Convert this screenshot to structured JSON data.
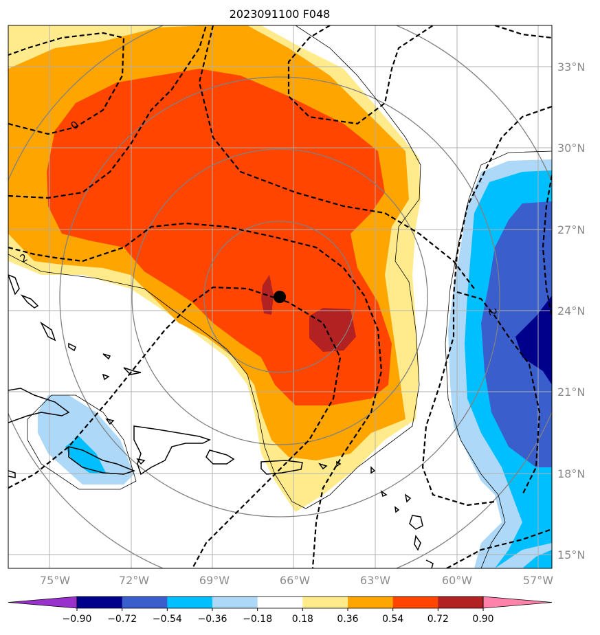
{
  "title": "2023091100 F048",
  "map": {
    "lon_labels": [
      "75°W",
      "72°W",
      "69°W",
      "66°W",
      "63°W",
      "60°W",
      "57°W"
    ],
    "lat_labels": [
      "33°N",
      "30°N",
      "27°N",
      "24°N",
      "21°N",
      "18°N",
      "15°N"
    ],
    "lon_values": [
      -75,
      -72,
      -69,
      -66,
      -63,
      -60,
      -57
    ],
    "lat_values": [
      33,
      30,
      27,
      24,
      21,
      18,
      15
    ],
    "contour_labels": [
      "0",
      "2",
      "2"
    ],
    "storm_center": {
      "lon": -66.5,
      "lat": 24.5
    },
    "shading_colors": {
      "pos_018_036": "#ffeb8c",
      "pos_036_054": "#ffa500",
      "pos_054_072": "#ff4500",
      "pos_072_090": "#b22222",
      "neg_018_036": "#add8f7",
      "neg_036_054": "#00bfff",
      "neg_054_072": "#3a5fcd",
      "neg_072_090": "#00008b"
    }
  },
  "colorbar": {
    "ticks": [
      "−0.90",
      "−0.72",
      "−0.54",
      "−0.36",
      "−0.18",
      "0.18",
      "0.36",
      "0.54",
      "0.72",
      "0.90"
    ],
    "colors": [
      "#9932cc",
      "#00008b",
      "#3a5fcd",
      "#00bfff",
      "#add8f7",
      "#ffffff",
      "#ffeb8c",
      "#ffa500",
      "#ff4500",
      "#b22222",
      "#ff82ab"
    ]
  }
}
